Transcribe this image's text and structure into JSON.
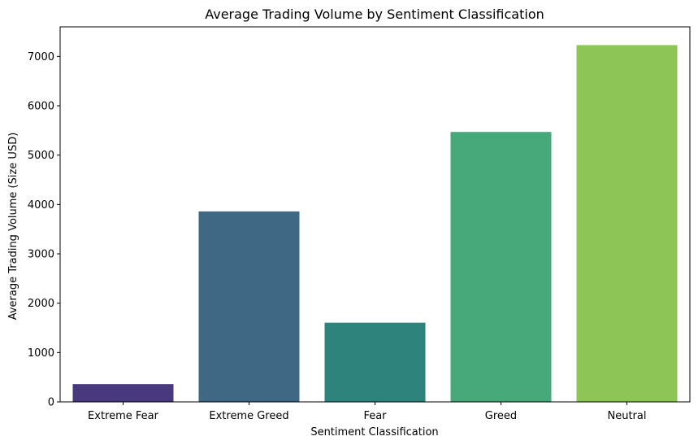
{
  "chart_data": {
    "type": "bar",
    "title": "Average Trading Volume by Sentiment Classification",
    "xlabel": "Sentiment Classification",
    "ylabel": "Average Trading Volume (Size USD)",
    "categories": [
      "Extreme Fear",
      "Extreme Greed",
      "Fear",
      "Greed",
      "Neutral"
    ],
    "values": [
      360,
      3860,
      1605,
      5470,
      7230
    ],
    "colors": [
      "#48387e",
      "#3e6883",
      "#2e847c",
      "#47a87a",
      "#8dc657"
    ],
    "ylim": [
      0,
      7600
    ],
    "yticks": [
      0,
      1000,
      2000,
      3000,
      4000,
      5000,
      6000,
      7000
    ],
    "ytick_labels": [
      "0",
      "1000",
      "2000",
      "3000",
      "4000",
      "5000",
      "6000",
      "7000"
    ],
    "grid": false,
    "legend": "none"
  }
}
